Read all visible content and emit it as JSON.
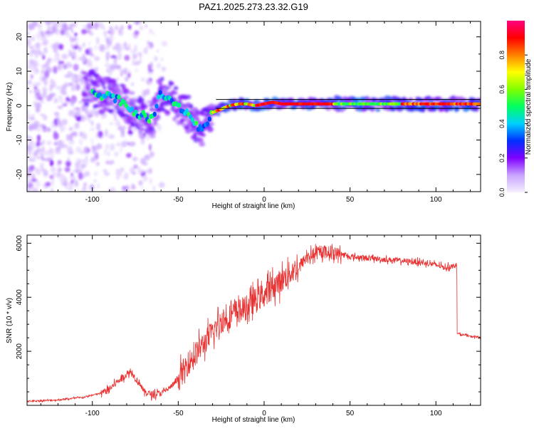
{
  "title": "PAZ1.2025.273.23.32.G19",
  "colors": {
    "snr_line": "#e83030",
    "ridge_line": "#000000"
  },
  "chart_data": [
    {
      "type": "heatmap",
      "xlabel": "Height of straight line (km)",
      "ylabel": "Frequency (Hz)",
      "xlim": [
        -138,
        126
      ],
      "ylim": [
        -25,
        24.5
      ],
      "xticks": [
        -100,
        -50,
        0,
        50,
        100
      ],
      "yticks": [
        -20,
        -10,
        0,
        10,
        20
      ],
      "colorbar": {
        "label": "Normalized spectral amplitude",
        "range": [
          0,
          1
        ],
        "ticks": [
          "0.0",
          "0.2",
          "0.4",
          "0.6",
          "0.8"
        ],
        "tick_values": [
          0,
          0.2,
          0.4,
          0.6,
          0.8
        ],
        "colormap": [
          "#f5f0ff",
          "#c9a4ff",
          "#8000ff",
          "#0030ff",
          "#00d0ff",
          "#00ff60",
          "#80ff00",
          "#ffff00",
          "#ff8000",
          "#ff0000",
          "#ff0080"
        ]
      },
      "ridge": {
        "x": [
          -100,
          -95,
          -90,
          -85,
          -80,
          -75,
          -70,
          -65,
          -60,
          -55,
          -50,
          -45,
          -40,
          -37,
          -33,
          -30,
          -25,
          -20,
          -15,
          -10,
          -5,
          0,
          5,
          10,
          20,
          40,
          60,
          80,
          100,
          115,
          126
        ],
        "y": [
          5,
          3,
          3,
          2,
          0,
          -2,
          -3,
          -4,
          4,
          2,
          0,
          -2,
          -5,
          -7,
          -5,
          -2,
          -1,
          0,
          0.5,
          0.5,
          0,
          0.5,
          1,
          0.5,
          0.5,
          0.5,
          0.5,
          0.5,
          0.5,
          0.5,
          0.5
        ]
      }
    },
    {
      "type": "line",
      "xlabel": "Height of straight line (km)",
      "ylabel": "SNR (10 * v/v)",
      "xlim": [
        -138,
        126
      ],
      "ylim": [
        0,
        6300
      ],
      "xticks": [
        -100,
        -50,
        0,
        50,
        100
      ],
      "yticks": [
        2000,
        4000,
        6000
      ],
      "series": [
        {
          "x": [
            -138,
            -120,
            -105,
            -95,
            -90,
            -85,
            -80,
            -77,
            -75,
            -72,
            -70,
            -65,
            -60,
            -55,
            -50,
            -45,
            -40,
            -35,
            -30,
            -25,
            -20,
            -15,
            -10,
            -5,
            0,
            5,
            10,
            15,
            20,
            25,
            30,
            35,
            40,
            45,
            50,
            60,
            70,
            80,
            90,
            100,
            105,
            110,
            112,
            113,
            120,
            126
          ],
          "y": [
            150,
            200,
            300,
            450,
            600,
            900,
            1150,
            1250,
            1000,
            800,
            500,
            400,
            450,
            650,
            950,
            1500,
            1900,
            2300,
            2700,
            3100,
            3300,
            3500,
            3600,
            3900,
            4100,
            4400,
            4600,
            4900,
            5100,
            5500,
            5600,
            5700,
            5650,
            5600,
            5500,
            5450,
            5400,
            5350,
            5300,
            5200,
            5100,
            5150,
            5250,
            2650,
            2550,
            2520
          ]
        }
      ]
    }
  ]
}
